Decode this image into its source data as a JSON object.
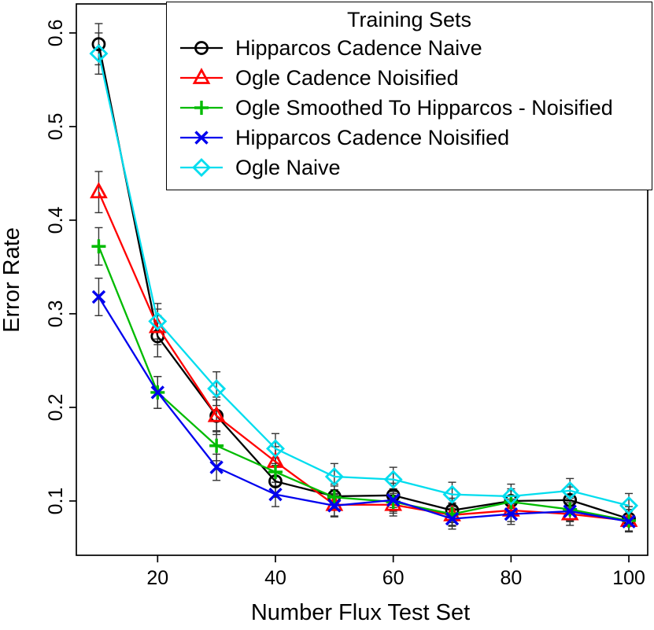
{
  "chart_data": {
    "type": "line",
    "title": "",
    "legend_title": "Training Sets",
    "xlabel": "Number Flux Test Set",
    "ylabel": "Error Rate",
    "legend_position": "top",
    "grid": false,
    "x": [
      10,
      20,
      30,
      40,
      50,
      60,
      70,
      80,
      90,
      100
    ],
    "x_ticks": [
      20,
      40,
      60,
      80,
      100
    ],
    "y_ticks": [
      0.1,
      0.2,
      0.3,
      0.4,
      0.5,
      0.6
    ],
    "xlim": [
      6.2,
      103.2
    ],
    "ylim": [
      0.042,
      0.631
    ],
    "error_bar_color": "#333333",
    "series": [
      {
        "name": "Hipparcos Cadence Naive",
        "color": "#000000",
        "marker": "circle",
        "values": [
          0.588,
          0.276,
          0.191,
          0.121,
          0.105,
          0.106,
          0.09,
          0.1,
          0.101,
          0.081
        ],
        "errors": [
          0.022,
          0.022,
          0.02,
          0.017,
          0.013,
          0.013,
          0.013,
          0.013,
          0.014,
          0.013
        ]
      },
      {
        "name": "Ogle Cadence Noisified",
        "color": "#FF0000",
        "marker": "triangle",
        "values": [
          0.43,
          0.286,
          0.191,
          0.142,
          0.096,
          0.096,
          0.085,
          0.09,
          0.086,
          0.079
        ],
        "errors": [
          0.022,
          0.019,
          0.017,
          0.016,
          0.012,
          0.012,
          0.012,
          0.012,
          0.012,
          0.012
        ]
      },
      {
        "name": "Ogle Smoothed To Hipparcos - Noisified",
        "color": "#00BB00",
        "marker": "plus",
        "values": [
          0.372,
          0.216,
          0.159,
          0.131,
          0.104,
          0.099,
          0.086,
          0.099,
          0.091,
          0.079
        ],
        "errors": [
          0.02,
          0.017,
          0.016,
          0.015,
          0.012,
          0.012,
          0.012,
          0.012,
          0.012,
          0.012
        ]
      },
      {
        "name": "Hipparcos Cadence Noisified",
        "color": "#0000EE",
        "marker": "x",
        "values": [
          0.318,
          0.216,
          0.136,
          0.107,
          0.095,
          0.101,
          0.081,
          0.086,
          0.089,
          0.078
        ],
        "errors": [
          0.02,
          0.017,
          0.014,
          0.013,
          0.012,
          0.012,
          0.011,
          0.011,
          0.011,
          0.011
        ]
      },
      {
        "name": "Ogle Naive",
        "color": "#00DDEE",
        "marker": "diamond",
        "values": [
          0.578,
          0.292,
          0.22,
          0.156,
          0.126,
          0.123,
          0.107,
          0.105,
          0.111,
          0.095
        ],
        "errors": [
          0.022,
          0.019,
          0.018,
          0.016,
          0.014,
          0.013,
          0.013,
          0.013,
          0.013,
          0.013
        ]
      }
    ]
  }
}
